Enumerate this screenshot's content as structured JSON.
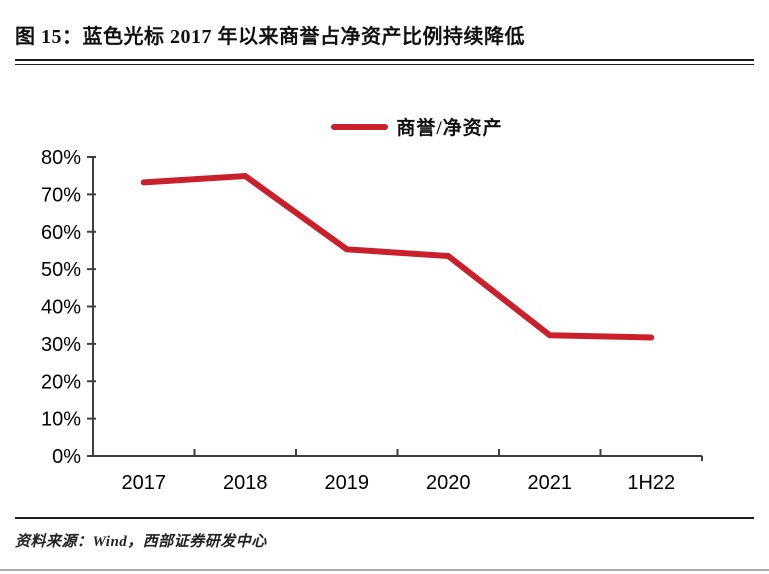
{
  "title": "图 15：蓝色光标 2017 年以来商誉占净资产比例持续降低",
  "source": "资料来源：Wind，西部证券研发中心",
  "legend": {
    "label": "商誉/净资产"
  },
  "colors": {
    "line": "#c9202b",
    "axis": "#3f3f3f",
    "text": "#000000",
    "rule": "#1c1c1c"
  },
  "chart_data": {
    "type": "line",
    "title": "",
    "categories": [
      "2017",
      "2018",
      "2019",
      "2020",
      "2021",
      "1H22"
    ],
    "series": [
      {
        "name": "商誉/净资产",
        "values": [
          73.2,
          74.9,
          55.3,
          53.5,
          32.3,
          31.7
        ]
      }
    ],
    "xlabel": "",
    "ylabel": "",
    "ylim": [
      0,
      80
    ],
    "ytick_step": 10,
    "ytick_labels": [
      "0%",
      "10%",
      "20%",
      "30%",
      "40%",
      "50%",
      "60%",
      "70%",
      "80%"
    ],
    "ytick_format": "percent",
    "grid": false,
    "legend_position": "top-center"
  }
}
